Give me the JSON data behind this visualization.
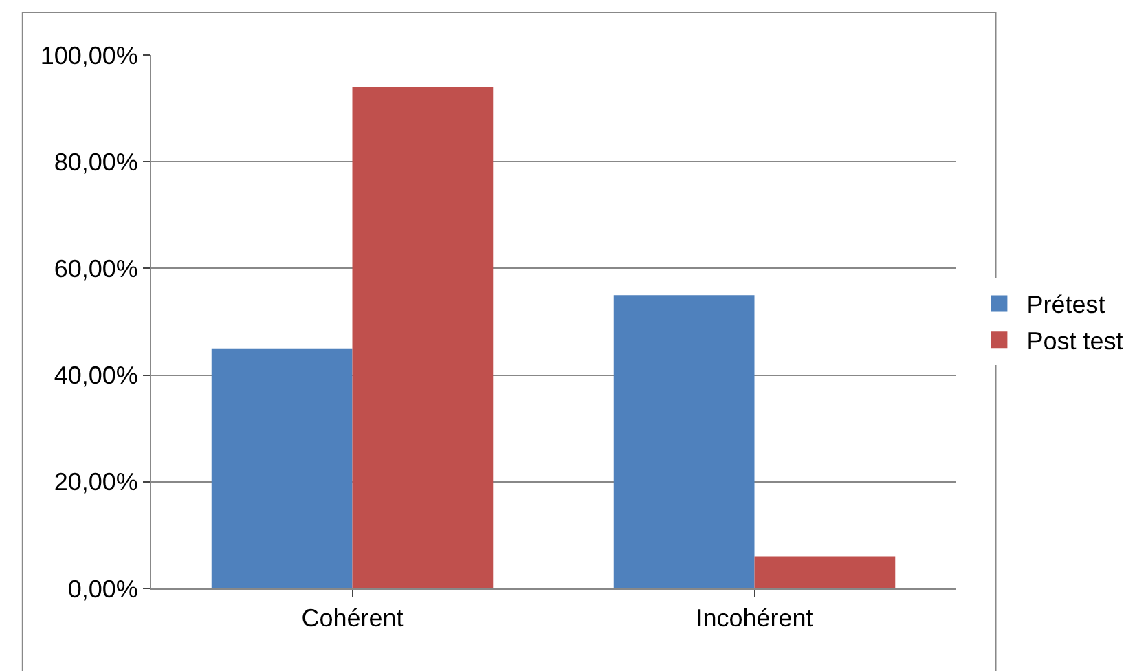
{
  "chart_data": {
    "type": "bar",
    "categories": [
      "Cohérent",
      "Incohérent"
    ],
    "series": [
      {
        "name": "Prétest",
        "color": "#4f81bd",
        "values": [
          45,
          55
        ]
      },
      {
        "name": "Post test",
        "color": "#c0504d",
        "values": [
          94,
          6
        ]
      }
    ],
    "ylim": [
      0,
      100
    ],
    "yticks": [
      {
        "value": 0,
        "label": "0,00%"
      },
      {
        "value": 20,
        "label": "20,00%"
      },
      {
        "value": 40,
        "label": "40,00%"
      },
      {
        "value": 60,
        "label": "60,00%"
      },
      {
        "value": 80,
        "label": "80,00%"
      },
      {
        "value": 100,
        "label": "100,00%"
      }
    ],
    "grid": true,
    "legend": "right"
  }
}
